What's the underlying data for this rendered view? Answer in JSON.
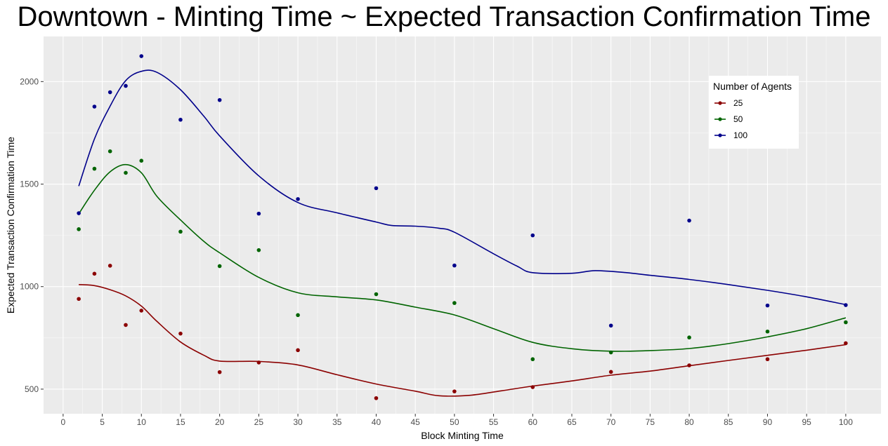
{
  "chart_data": {
    "type": "scatter",
    "title": "Downtown - Minting Time ~ Expected Transaction Confirmation Time",
    "xlabel": "Block Minting Time",
    "ylabel": "Expected Transaction Confirmation Time",
    "xlim": [
      -2.5,
      104.5
    ],
    "ylim": [
      380,
      2220
    ],
    "x_ticks": [
      0,
      5,
      10,
      15,
      20,
      25,
      30,
      35,
      40,
      45,
      50,
      55,
      60,
      65,
      70,
      75,
      80,
      85,
      90,
      95,
      100
    ],
    "y_ticks": [
      500,
      1000,
      1500,
      2000
    ],
    "grid": true,
    "legend": {
      "title": "Number of Agents",
      "placement": "top-right"
    },
    "series": [
      {
        "name": "25",
        "color": "#8b0000",
        "x": [
          2,
          4,
          6,
          8,
          10,
          15,
          20,
          25,
          30,
          40,
          50,
          60,
          70,
          80,
          90,
          100
        ],
        "y": [
          940,
          1063,
          1102,
          813,
          883,
          771,
          583,
          630,
          690,
          456,
          489,
          510,
          584,
          616,
          646,
          724
        ],
        "smooth": [
          [
            2,
            1010
          ],
          [
            4,
            1005
          ],
          [
            6,
            985
          ],
          [
            8,
            955
          ],
          [
            10,
            905
          ],
          [
            12,
            830
          ],
          [
            15,
            730
          ],
          [
            18,
            665
          ],
          [
            20,
            637
          ],
          [
            25,
            635
          ],
          [
            30,
            618
          ],
          [
            35,
            570
          ],
          [
            40,
            525
          ],
          [
            45,
            490
          ],
          [
            48,
            468
          ],
          [
            52,
            470
          ],
          [
            56,
            492
          ],
          [
            60,
            515
          ],
          [
            65,
            540
          ],
          [
            70,
            568
          ],
          [
            75,
            588
          ],
          [
            80,
            614
          ],
          [
            85,
            640
          ],
          [
            90,
            665
          ],
          [
            95,
            690
          ],
          [
            100,
            717
          ]
        ]
      },
      {
        "name": "50",
        "color": "#006400",
        "x": [
          2,
          4,
          6,
          8,
          10,
          15,
          20,
          25,
          30,
          40,
          50,
          60,
          70,
          80,
          90,
          100
        ],
        "y": [
          1280,
          1575,
          1660,
          1555,
          1614,
          1268,
          1100,
          1178,
          861,
          963,
          920,
          646,
          679,
          752,
          781,
          826
        ],
        "smooth": [
          [
            2,
            1355
          ],
          [
            4,
            1470
          ],
          [
            6,
            1560
          ],
          [
            8,
            1595
          ],
          [
            10,
            1555
          ],
          [
            12,
            1440
          ],
          [
            15,
            1325
          ],
          [
            18,
            1220
          ],
          [
            20,
            1165
          ],
          [
            25,
            1045
          ],
          [
            30,
            970
          ],
          [
            35,
            950
          ],
          [
            40,
            935
          ],
          [
            45,
            900
          ],
          [
            50,
            862
          ],
          [
            55,
            795
          ],
          [
            60,
            728
          ],
          [
            65,
            697
          ],
          [
            70,
            685
          ],
          [
            75,
            688
          ],
          [
            80,
            698
          ],
          [
            85,
            722
          ],
          [
            90,
            755
          ],
          [
            95,
            795
          ],
          [
            100,
            848
          ]
        ]
      },
      {
        "name": "100",
        "color": "#00008b",
        "x": [
          2,
          4,
          6,
          8,
          10,
          15,
          20,
          25,
          30,
          40,
          50,
          60,
          70,
          80,
          90,
          100
        ],
        "y": [
          1358,
          1878,
          1948,
          1979,
          2124,
          1814,
          1910,
          1356,
          1427,
          1480,
          1103,
          1250,
          810,
          1322,
          908,
          910
        ],
        "smooth": [
          [
            2,
            1490
          ],
          [
            4,
            1720
          ],
          [
            6,
            1880
          ],
          [
            8,
            2005
          ],
          [
            10,
            2050
          ],
          [
            12,
            2045
          ],
          [
            15,
            1960
          ],
          [
            18,
            1830
          ],
          [
            20,
            1735
          ],
          [
            25,
            1540
          ],
          [
            30,
            1410
          ],
          [
            35,
            1360
          ],
          [
            40,
            1315
          ],
          [
            42,
            1298
          ],
          [
            45,
            1295
          ],
          [
            48,
            1285
          ],
          [
            50,
            1265
          ],
          [
            55,
            1160
          ],
          [
            58,
            1100
          ],
          [
            60,
            1068
          ],
          [
            65,
            1065
          ],
          [
            68,
            1078
          ],
          [
            72,
            1068
          ],
          [
            75,
            1055
          ],
          [
            80,
            1035
          ],
          [
            85,
            1010
          ],
          [
            90,
            982
          ],
          [
            95,
            950
          ],
          [
            100,
            912
          ]
        ]
      }
    ]
  }
}
